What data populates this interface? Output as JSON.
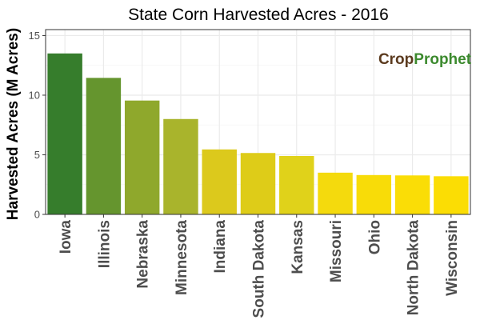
{
  "chart_data": {
    "type": "bar",
    "title": "State Corn Harvested Acres - 2016",
    "xlabel": "",
    "ylabel": "Harvested Acres (M Acres)",
    "categories": [
      "Iowa",
      "Illinois",
      "Nebraska",
      "Minnesota",
      "Indiana",
      "South Dakota",
      "Kansas",
      "Missouri",
      "Ohio",
      "North Dakota",
      "Wisconsin"
    ],
    "values": [
      13.5,
      11.45,
      9.55,
      8.0,
      5.45,
      5.15,
      4.9,
      3.5,
      3.3,
      3.27,
      3.2
    ],
    "ylim": [
      0,
      15.5
    ],
    "yticks": [
      0,
      5,
      10,
      15
    ],
    "grid": true,
    "bar_colors": [
      "#367d2c",
      "#65952e",
      "#8fa82c",
      "#a9b42c",
      "#dcc91c",
      "#decc18",
      "#e0d21a",
      "#f4da0d",
      "#f8dc08",
      "#fadd06",
      "#fbdd04"
    ]
  },
  "logo": {
    "crop_text": "Crop",
    "prophet_text": "Prophet",
    "crop_color": "#5b3a1e",
    "prophet_color": "#3c8a2e"
  },
  "colors": {
    "panel_background": "#ffffff",
    "grid_major": "#ebebeb",
    "grid_minor": "#f5f5f5",
    "panel_border": "#333333"
  }
}
